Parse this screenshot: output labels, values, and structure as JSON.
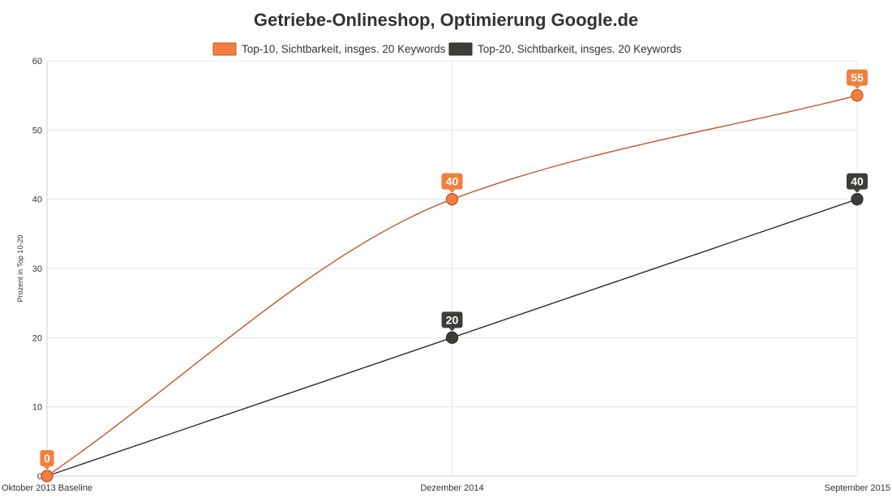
{
  "chart_data": {
    "type": "line",
    "title": "Getriebe-Onlineshop, Optimierung Google.de",
    "ylabel": "Prozent in Top 10-20",
    "xlabel": "",
    "categories": [
      "Oktober 2013 Baseline",
      "Dezember 2014",
      "September 2015"
    ],
    "ylim": [
      0,
      60
    ],
    "yticks": [
      0,
      10,
      20,
      30,
      40,
      50,
      60
    ],
    "grid": true,
    "legend_position": "top",
    "series": [
      {
        "name": "Top-10, Sichtbarkeit, insges. 20 Keywords",
        "values": [
          0,
          40,
          55
        ],
        "color": "#f47e3c",
        "line_color": "#c2562a",
        "smooth": true
      },
      {
        "name": "Top-20, Sichtbarkeit, insges. 20 Keywords",
        "values": [
          0,
          20,
          40
        ],
        "color": "#3d3d3a",
        "line_color": "#2b2b29",
        "smooth": false
      }
    ]
  }
}
